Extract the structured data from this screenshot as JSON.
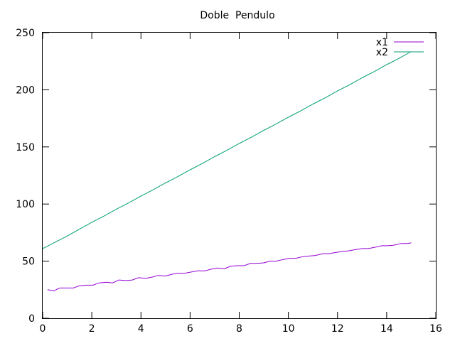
{
  "chart_data": {
    "type": "line",
    "title": "Doble  Pendulo",
    "xlabel": "",
    "ylabel": "",
    "xlim": [
      0,
      16
    ],
    "ylim": [
      0,
      250
    ],
    "xticks": [
      0,
      2,
      4,
      6,
      8,
      10,
      12,
      14,
      16
    ],
    "yticks": [
      0,
      50,
      100,
      150,
      200,
      250
    ],
    "grid": false,
    "legend_position": "top-right",
    "series": [
      {
        "name": "x1",
        "color": "#9400d3",
        "x": [
          0.2,
          0.45,
          0.7,
          1.0,
          1.25,
          1.5,
          1.8,
          2.05,
          2.3,
          2.6,
          2.85,
          3.1,
          3.4,
          3.65,
          3.9,
          4.2,
          4.45,
          4.7,
          5.0,
          5.25,
          5.5,
          5.8,
          6.05,
          6.3,
          6.6,
          6.85,
          7.1,
          7.4,
          7.65,
          7.9,
          8.2,
          8.45,
          8.7,
          9.0,
          9.25,
          9.5,
          9.8,
          10.05,
          10.3,
          10.6,
          10.85,
          11.1,
          11.4,
          11.65,
          11.9,
          12.2,
          12.45,
          12.7,
          13.0,
          13.25,
          13.5,
          13.8,
          14.05,
          14.3,
          14.6,
          14.85,
          15.0
        ],
        "values": [
          25,
          24,
          26.5,
          26.5,
          26.5,
          28.5,
          29,
          29,
          31,
          31.5,
          31,
          33.5,
          33,
          33.5,
          35.5,
          35,
          36,
          37.5,
          37,
          38.5,
          39.5,
          39.5,
          40.5,
          41.5,
          41.5,
          43,
          44,
          43.5,
          45.5,
          46,
          46,
          48,
          48,
          48.5,
          50,
          50,
          51.5,
          52.5,
          52.5,
          54,
          54.5,
          55,
          56.5,
          56.5,
          57.5,
          58.5,
          59,
          60,
          61,
          61,
          62,
          63.5,
          63.5,
          64,
          65.5,
          65.5,
          66
        ]
      },
      {
        "name": "x2",
        "color": "#009e73",
        "x": [
          0,
          0.5,
          1,
          1.5,
          2,
          2.5,
          3,
          3.5,
          4,
          4.5,
          5,
          5.5,
          6,
          6.5,
          7,
          7.5,
          8,
          8.5,
          9,
          9.5,
          10,
          10.5,
          11,
          11.5,
          12,
          12.5,
          13,
          13.5,
          14,
          14.5,
          15
        ],
        "values": [
          61,
          66.5,
          72,
          78,
          84,
          89.5,
          95.5,
          101,
          107,
          112.5,
          118.5,
          124,
          130,
          135.5,
          141.5,
          147,
          153,
          158.5,
          164.5,
          170,
          176,
          181.5,
          187.5,
          193,
          199,
          204.5,
          210.5,
          216,
          222,
          227.5,
          233.5
        ]
      }
    ]
  }
}
